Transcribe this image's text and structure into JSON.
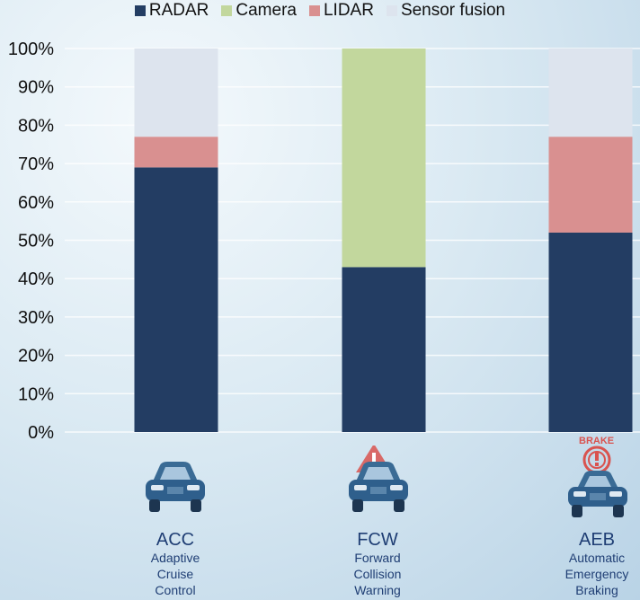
{
  "legend": [
    {
      "label": "RADAR",
      "color": "#233d63"
    },
    {
      "label": "Camera",
      "color": "#c2d79d"
    },
    {
      "label": "LIDAR",
      "color": "#d99090"
    },
    {
      "label": "Sensor fusion",
      "color": "#dde4ee"
    }
  ],
  "features": [
    {
      "abbr": "ACC",
      "desc_lines": [
        "Adaptive",
        "Cruise",
        "Control"
      ]
    },
    {
      "abbr": "FCW",
      "desc_lines": [
        "Forward",
        "Collision",
        "Warning"
      ]
    },
    {
      "abbr": "AEB",
      "desc_lines": [
        "Automatic",
        "Emergency",
        "Braking"
      ],
      "badge": "BRAKE"
    }
  ],
  "chart_data": {
    "type": "bar",
    "stacked": true,
    "categories": [
      "ACC",
      "FCW",
      "AEB"
    ],
    "series": [
      {
        "name": "RADAR",
        "values": [
          69,
          43,
          52
        ]
      },
      {
        "name": "Camera",
        "values": [
          0,
          57,
          0
        ]
      },
      {
        "name": "LIDAR",
        "values": [
          8,
          0,
          25
        ]
      },
      {
        "name": "Sensor fusion",
        "values": [
          23,
          0,
          23
        ]
      }
    ],
    "ylim": [
      0,
      100
    ],
    "yticks": [
      "0%",
      "10%",
      "20%",
      "30%",
      "40%",
      "50%",
      "60%",
      "70%",
      "80%",
      "90%",
      "100%"
    ],
    "grid": true,
    "legend_position": "top"
  }
}
